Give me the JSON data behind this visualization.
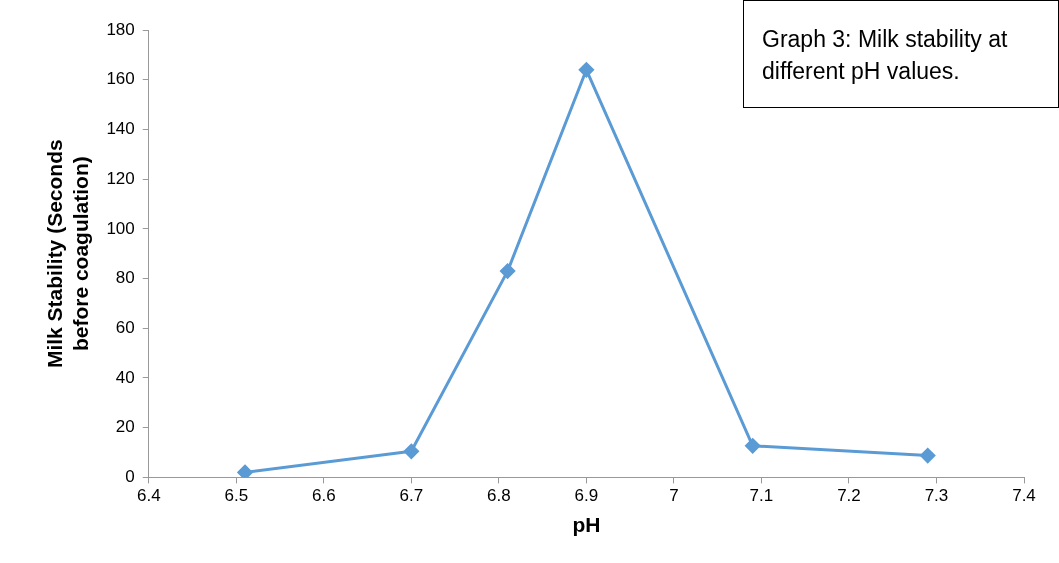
{
  "chart_data": {
    "type": "line",
    "title": "Graph 3: Milk stability at different pH values.",
    "xlabel": "pH",
    "ylabel": "Milk Stability (Seconds before coagulation)",
    "series": [
      {
        "color": "#5b9bd5",
        "x": [
          6.51,
          6.7,
          6.81,
          6.9,
          7.09,
          7.29
        ],
        "values": [
          2,
          10.5,
          83,
          164,
          12.7,
          8.8
        ]
      }
    ],
    "xlim": [
      6.4,
      7.4
    ],
    "xticks": [
      6.4,
      6.5,
      6.6,
      6.7,
      6.8,
      6.9,
      7,
      7.1,
      7.2,
      7.3,
      7.4
    ],
    "ylim": [
      0,
      180
    ],
    "yticks": [
      0,
      20,
      40,
      60,
      80,
      100,
      120,
      140,
      160,
      180
    ],
    "marker": "diamond",
    "line_style": "solid",
    "grid": false,
    "legend": false
  }
}
